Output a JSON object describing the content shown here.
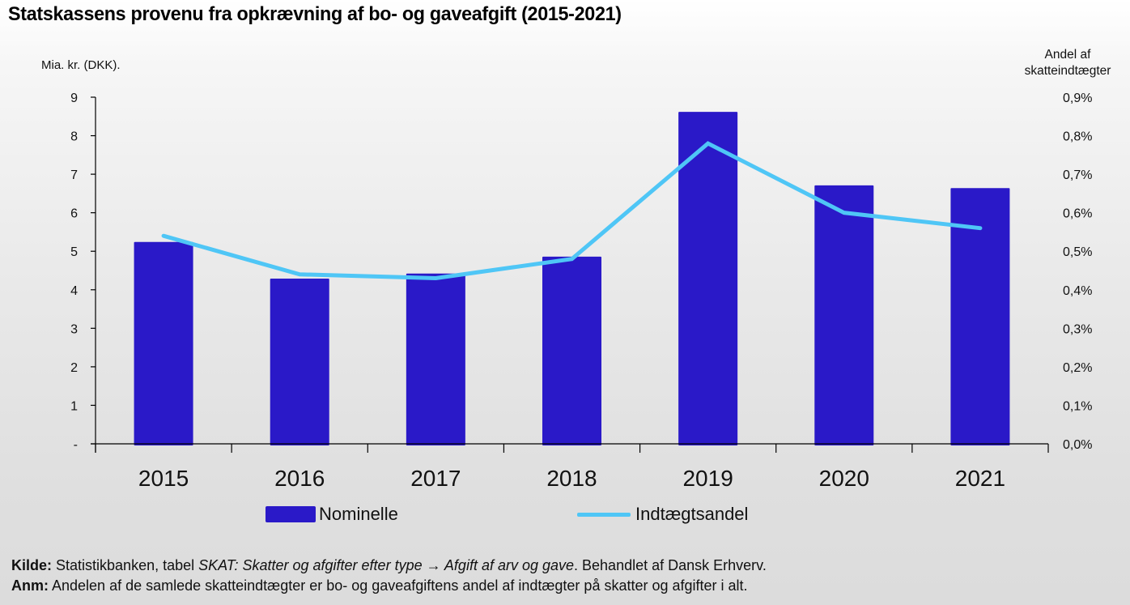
{
  "chart_data": {
    "type": "bar+line",
    "title": "Statskassens provenu fra opkrævning af bo- og gaveafgift (2015-2021)",
    "categories": [
      "2015",
      "2016",
      "2017",
      "2018",
      "2019",
      "2020",
      "2021"
    ],
    "series": [
      {
        "name": "Nominelle",
        "type": "bar",
        "axis": "left",
        "color": "#2a19c8",
        "values": [
          5.24,
          4.29,
          4.42,
          4.86,
          8.62,
          6.71,
          6.64
        ]
      },
      {
        "name": "Indtægtsandel",
        "type": "line",
        "axis": "right",
        "color": "#4fc6f6",
        "values": [
          0.54,
          0.44,
          0.43,
          0.48,
          0.78,
          0.6,
          0.56
        ]
      }
    ],
    "ylabel_left": "Mia. kr. (DKK).",
    "ylabel_right": "Andel af skatteindtægter",
    "ylim_left": [
      0,
      9
    ],
    "ylim_right": [
      0,
      0.9
    ],
    "yticks_left": [
      "-",
      "1",
      "2",
      "3",
      "4",
      "5",
      "6",
      "7",
      "8",
      "9"
    ],
    "yticks_right": [
      "0,0%",
      "0,1%",
      "0,2%",
      "0,3%",
      "0,4%",
      "0,5%",
      "0,6%",
      "0,7%",
      "0,8%",
      "0,9%"
    ],
    "grid": false,
    "legend_position": "bottom"
  },
  "notes": {
    "source_label": "Kilde:",
    "source_text_1": " Statistikbanken, tabel ",
    "source_italic_1": "SKAT: Skatter og afgifter efter type ",
    "source_arrow": "→",
    "source_italic_2": " Afgift af arv og gave",
    "source_text_2": ". Behandlet af Dansk Erhverv.",
    "note_label": "Anm:",
    "note_text": " Andelen af de samlede skatteindtægter er bo- og gaveafgiftens andel af indtægter på skatter og afgifter i alt."
  }
}
